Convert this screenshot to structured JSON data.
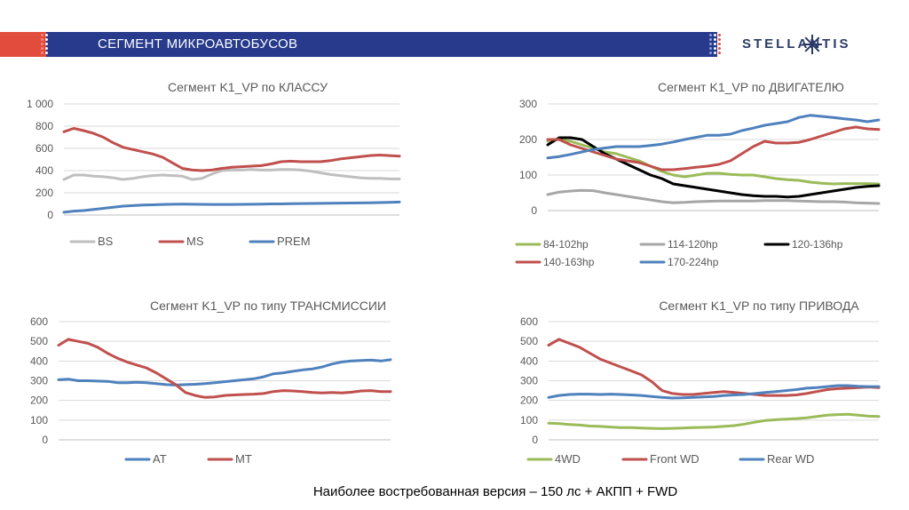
{
  "header": {
    "title": "СЕГМЕНТ МИКРОАВТОБУСОВ",
    "logo_text": "STELLANTIS",
    "logo_icon": "stellantis-star-icon",
    "brand_blue": "#273a8c",
    "brand_red": "#e24c3c"
  },
  "footer": {
    "caption": "Наиболее востребованная версия – 150 лс + АКПП + FWD"
  },
  "chart_data": [
    {
      "id": "class",
      "type": "line",
      "title": "Сегмент K1_VP по КЛАССУ",
      "ylim": [
        0,
        1000
      ],
      "yticks": [
        0,
        200,
        400,
        600,
        800,
        1000
      ],
      "ytick_labels": [
        "0",
        "200",
        "400",
        "600",
        "800",
        "1 000"
      ],
      "grid": true,
      "legend": "bottom",
      "series": [
        {
          "name": "BS",
          "color": "#bfbfbf",
          "values": [
            320,
            360,
            360,
            350,
            345,
            335,
            320,
            330,
            345,
            355,
            360,
            355,
            350,
            320,
            330,
            370,
            400,
            405,
            405,
            410,
            405,
            405,
            410,
            410,
            405,
            395,
            380,
            365,
            355,
            345,
            335,
            330,
            330,
            325,
            325
          ]
        },
        {
          "name": "MS",
          "color": "#c0504d",
          "values": [
            750,
            780,
            760,
            735,
            700,
            650,
            610,
            590,
            570,
            550,
            520,
            470,
            420,
            405,
            400,
            405,
            420,
            430,
            435,
            440,
            445,
            460,
            480,
            485,
            480,
            480,
            480,
            490,
            505,
            515,
            525,
            535,
            540,
            535,
            530
          ]
        },
        {
          "name": "PREM",
          "color": "#4f81bd",
          "values": [
            25,
            35,
            40,
            50,
            60,
            70,
            80,
            85,
            90,
            92,
            95,
            97,
            98,
            97,
            96,
            95,
            95,
            95,
            96,
            97,
            98,
            100,
            100,
            102,
            103,
            104,
            105,
            106,
            107,
            108,
            109,
            110,
            112,
            114,
            117
          ]
        }
      ]
    },
    {
      "id": "engine",
      "type": "line",
      "title": "Сегмент K1_VP по ДВИГАТЕЛЮ",
      "ylim": [
        0,
        300
      ],
      "yticks": [
        0,
        100,
        200,
        300
      ],
      "ytick_labels": [
        "0",
        "100",
        "200",
        "300"
      ],
      "grid": true,
      "legend": "bottom",
      "series": [
        {
          "name": "84-102hp",
          "color": "#9bbb59",
          "values": [
            195,
            200,
            195,
            185,
            175,
            165,
            160,
            150,
            140,
            125,
            110,
            100,
            95,
            100,
            105,
            105,
            102,
            100,
            100,
            95,
            90,
            87,
            85,
            80,
            77,
            75,
            76,
            76,
            76,
            75
          ]
        },
        {
          "name": "114-120hp",
          "color": "#a6a6a6",
          "values": [
            45,
            52,
            55,
            57,
            56,
            50,
            45,
            40,
            35,
            30,
            25,
            22,
            23,
            25,
            26,
            27,
            27,
            27,
            27,
            28,
            28,
            28,
            27,
            26,
            25,
            25,
            24,
            22,
            21,
            20
          ]
        },
        {
          "name": "120-136hp",
          "color": "#000000",
          "values": [
            185,
            205,
            205,
            200,
            180,
            160,
            145,
            130,
            115,
            100,
            90,
            75,
            70,
            65,
            60,
            55,
            50,
            45,
            42,
            40,
            40,
            38,
            40,
            45,
            50,
            55,
            60,
            65,
            68,
            70
          ]
        },
        {
          "name": "140-163hp",
          "color": "#c0504d",
          "values": [
            200,
            200,
            185,
            175,
            165,
            155,
            145,
            140,
            135,
            125,
            115,
            115,
            118,
            122,
            125,
            130,
            140,
            160,
            180,
            195,
            190,
            190,
            192,
            200,
            210,
            220,
            230,
            235,
            230,
            228
          ]
        },
        {
          "name": "170-224hp",
          "color": "#4f81bd",
          "values": [
            148,
            152,
            158,
            165,
            172,
            176,
            180,
            180,
            180,
            183,
            187,
            193,
            200,
            206,
            212,
            212,
            215,
            225,
            232,
            240,
            245,
            250,
            262,
            268,
            265,
            262,
            258,
            255,
            250,
            255
          ]
        }
      ]
    },
    {
      "id": "transmission",
      "type": "line",
      "title": "Сегмент K1_VP по типу ТРАНСМИССИИ",
      "ylim": [
        0,
        600
      ],
      "yticks": [
        0,
        100,
        200,
        300,
        400,
        500,
        600
      ],
      "ytick_labels": [
        "0",
        "100",
        "200",
        "300",
        "400",
        "500",
        "600"
      ],
      "grid": true,
      "legend": "bottom",
      "series": [
        {
          "name": "AT",
          "color": "#4f81bd",
          "values": [
            305,
            308,
            300,
            300,
            298,
            297,
            290,
            290,
            292,
            290,
            285,
            280,
            278,
            280,
            282,
            285,
            290,
            295,
            300,
            305,
            310,
            320,
            335,
            340,
            348,
            355,
            360,
            370,
            385,
            395,
            400,
            403,
            405,
            400,
            407
          ]
        },
        {
          "name": "MT",
          "color": "#c0504d",
          "values": [
            480,
            510,
            500,
            490,
            470,
            440,
            415,
            395,
            380,
            365,
            340,
            310,
            280,
            240,
            225,
            215,
            218,
            225,
            228,
            230,
            232,
            235,
            245,
            250,
            248,
            245,
            240,
            238,
            240,
            238,
            242,
            248,
            250,
            245,
            245
          ]
        }
      ]
    },
    {
      "id": "drive",
      "type": "line",
      "title": "Сегмент K1_VP по типу ПРИВОДА",
      "ylim": [
        0,
        600
      ],
      "yticks": [
        0,
        100,
        200,
        300,
        400,
        500,
        600
      ],
      "ytick_labels": [
        "0",
        "100",
        "200",
        "300",
        "400",
        "500",
        "600"
      ],
      "grid": true,
      "legend": "bottom",
      "series": [
        {
          "name": "4WD",
          "color": "#9bbb59",
          "values": [
            85,
            82,
            78,
            75,
            70,
            68,
            65,
            62,
            62,
            60,
            58,
            57,
            58,
            60,
            62,
            63,
            65,
            68,
            72,
            80,
            90,
            98,
            102,
            105,
            108,
            112,
            118,
            125,
            128,
            130,
            125,
            120,
            118
          ]
        },
        {
          "name": "Front WD",
          "color": "#c0504d",
          "values": [
            480,
            510,
            490,
            470,
            440,
            410,
            390,
            370,
            350,
            330,
            295,
            250,
            235,
            230,
            230,
            235,
            240,
            245,
            240,
            235,
            230,
            225,
            225,
            225,
            228,
            235,
            245,
            255,
            260,
            262,
            265,
            268,
            265
          ]
        },
        {
          "name": "Rear WD",
          "color": "#4f81bd",
          "values": [
            215,
            225,
            230,
            232,
            232,
            230,
            232,
            230,
            228,
            225,
            220,
            215,
            212,
            213,
            215,
            218,
            220,
            225,
            228,
            230,
            235,
            240,
            245,
            250,
            255,
            262,
            265,
            270,
            275,
            275,
            272,
            270,
            270
          ]
        }
      ]
    }
  ]
}
